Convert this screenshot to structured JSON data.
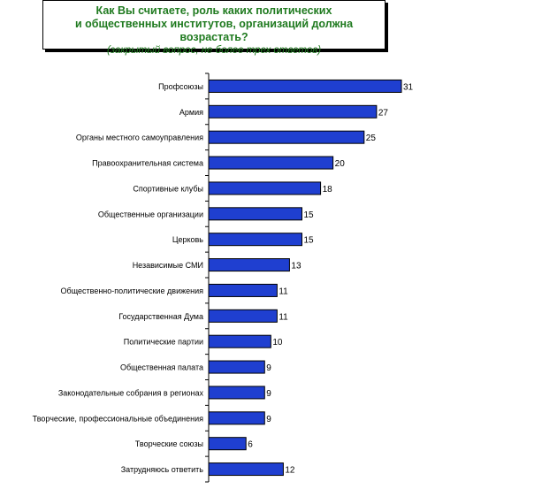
{
  "title": {
    "line1": "Как Вы считаете, роль каких политических",
    "line2": "и общественных институтов, организаций должна возрастать?",
    "subtitle": "(закрытый вопрос, не более трех ответов)"
  },
  "colors": {
    "bar": "#1f3fd0",
    "bar_stroke": "#000000",
    "axis": "#000000",
    "title_text": "#1f7a1f"
  },
  "chart_data": {
    "type": "bar",
    "orientation": "horizontal",
    "categories": [
      "Профсоюзы",
      "Армия",
      "Органы местного самоуправления",
      "Правоохранительная система",
      "Спортивные клубы",
      "Общественные организации",
      "Церковь",
      "Независимые СМИ",
      "Общественно-политические движения",
      "Государственная Дума",
      "Политические партии",
      "Общественная палата",
      "Законодательные собрания в регионах",
      "Творческие, профессиональные объединения",
      "Творческие союзы",
      "Затрудняюсь ответить"
    ],
    "values": [
      31,
      27,
      25,
      20,
      18,
      15,
      15,
      13,
      11,
      11,
      10,
      9,
      9,
      9,
      6,
      12
    ],
    "title": "Как Вы считаете, роль каких политических и общественных институтов, организаций должна возрастать?",
    "xlabel": "",
    "ylabel": "",
    "xlim": [
      0,
      31
    ],
    "grid": false,
    "legend": "none"
  }
}
